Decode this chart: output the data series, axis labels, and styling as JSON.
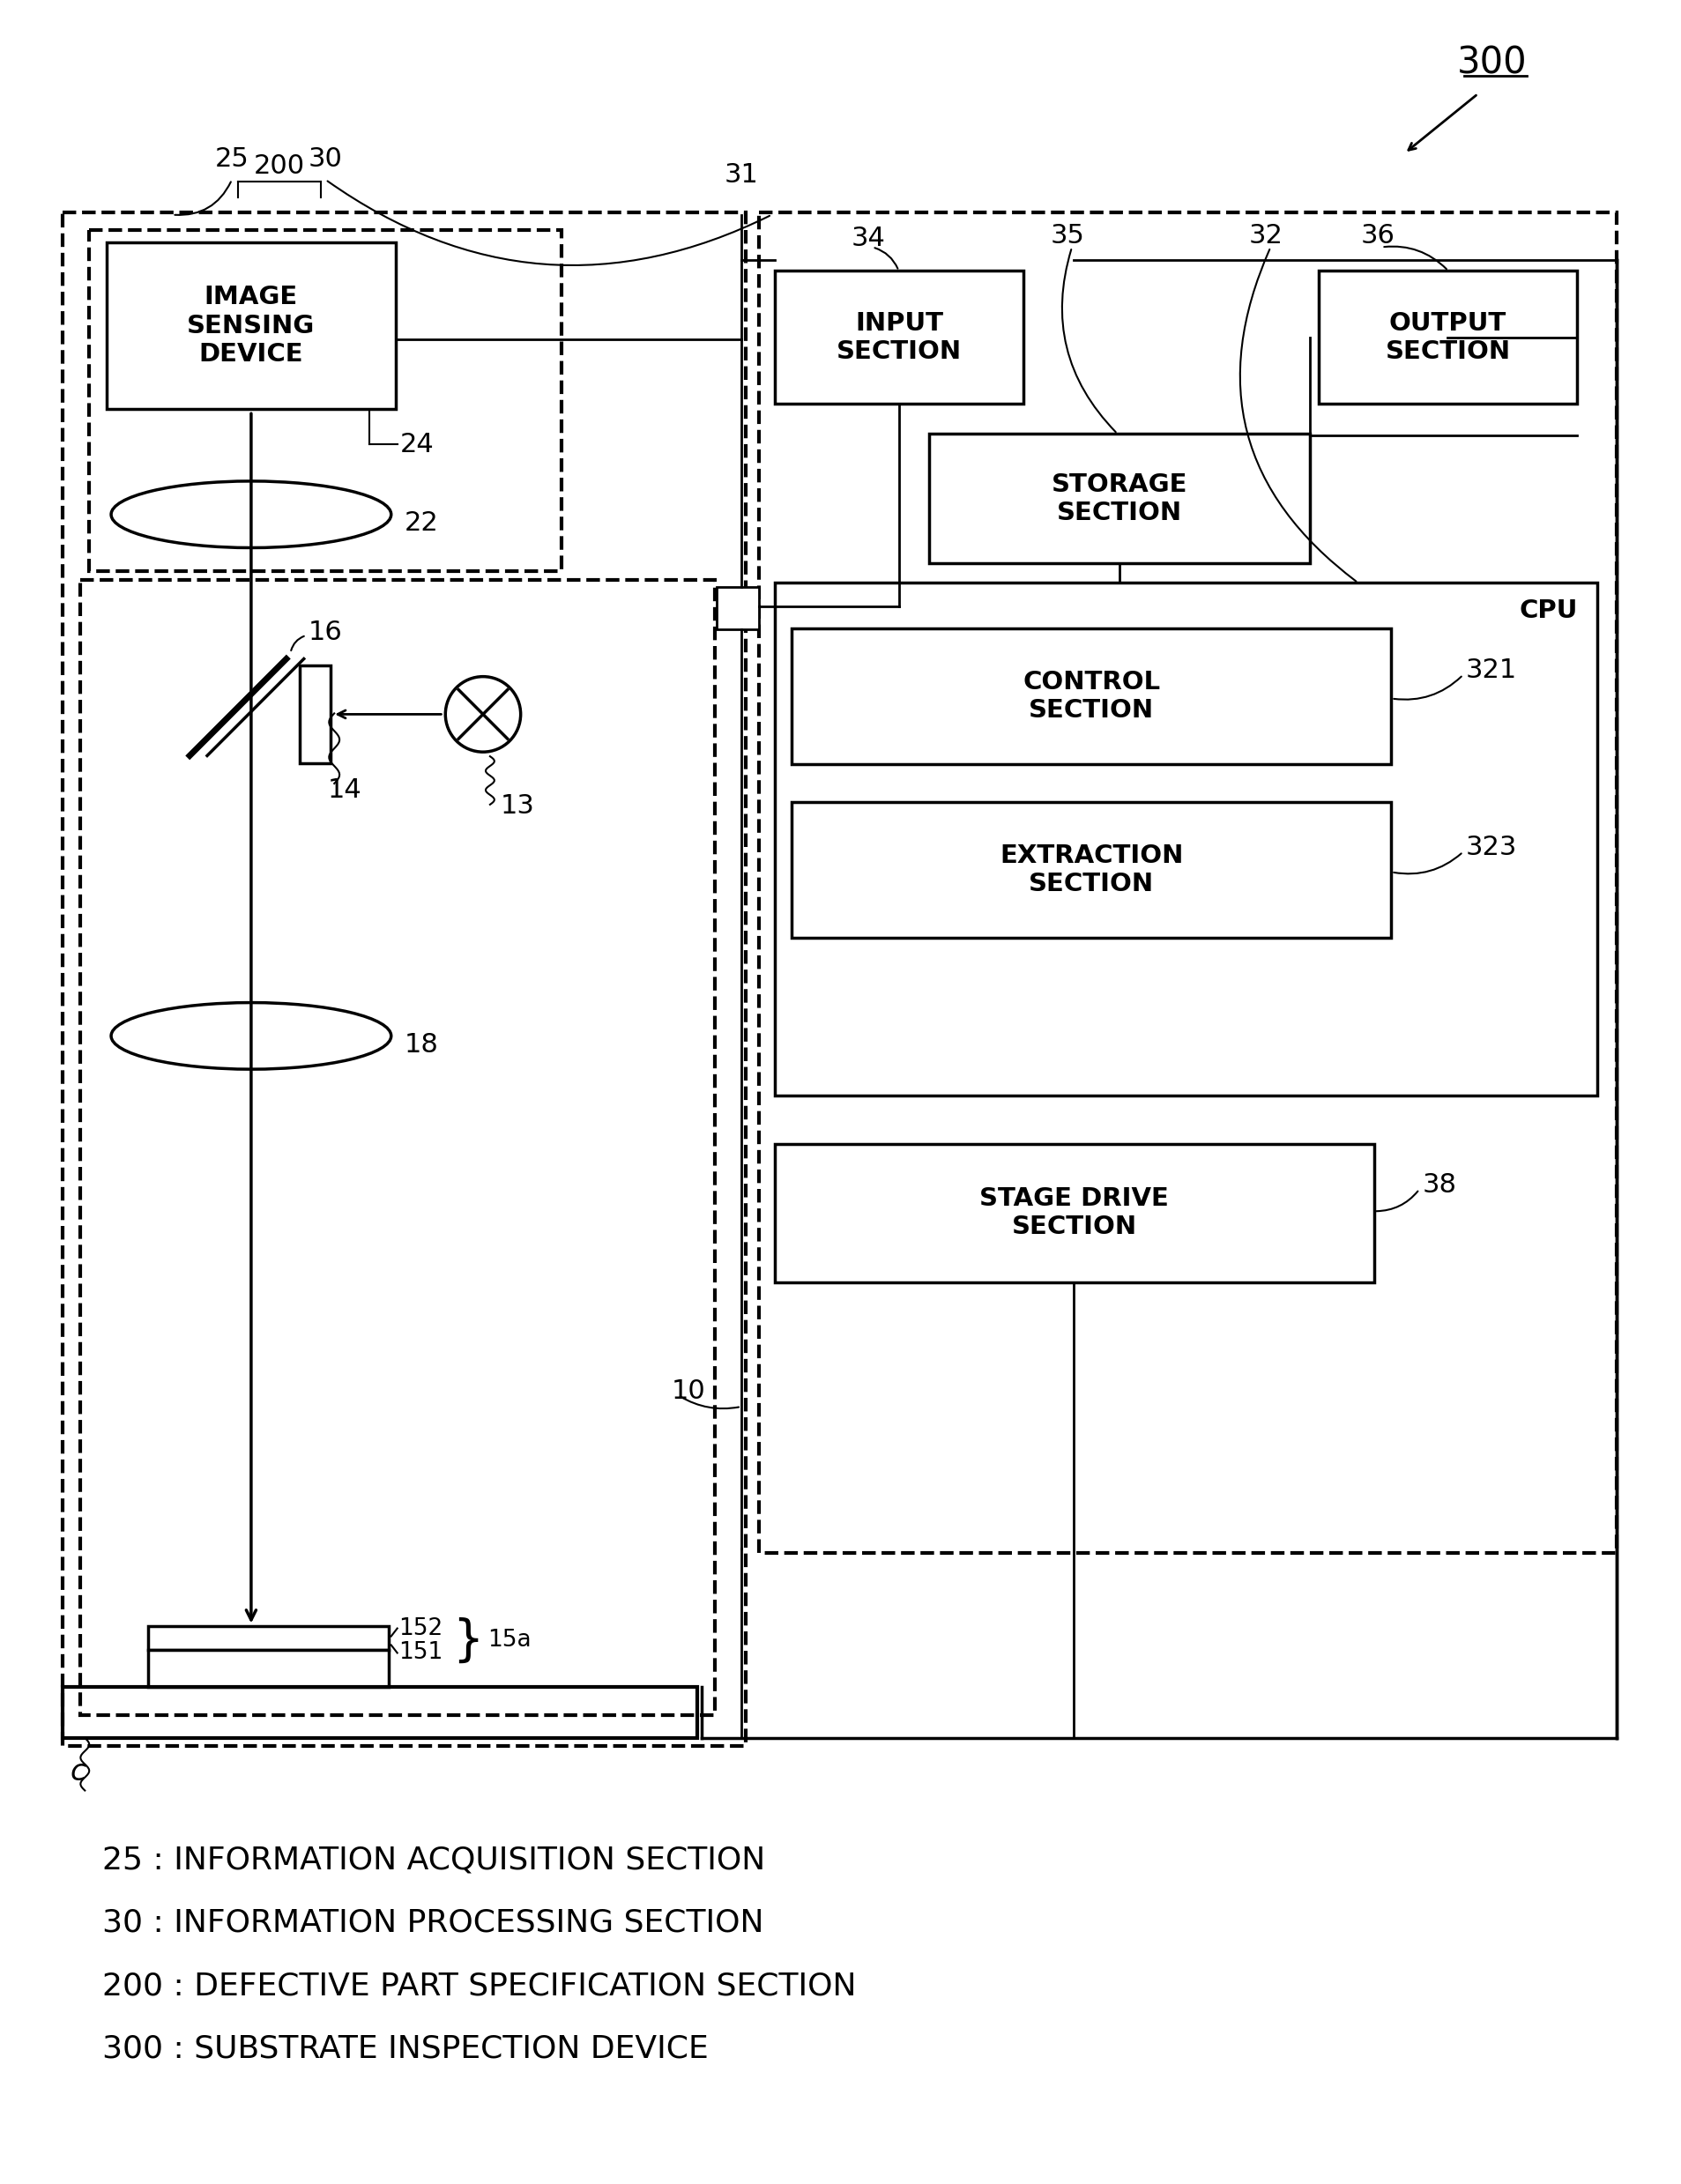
{
  "bg_color": "#ffffff",
  "line_color": "#000000",
  "fig_width": 19.07,
  "fig_height": 24.78,
  "legend": [
    "25 : INFORMATION ACQUISITION SECTION",
    "30 : INFORMATION PROCESSING SECTION",
    "200 : DEFECTIVE PART SPECIFICATION SECTION",
    "300 : SUBSTRATE INSPECTION DEVICE"
  ]
}
